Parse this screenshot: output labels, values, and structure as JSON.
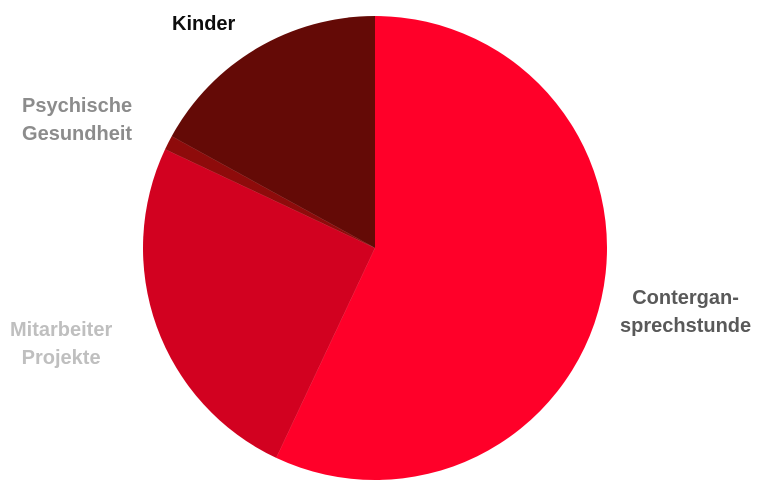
{
  "chart_data": {
    "type": "pie",
    "start_angle_deg": 0,
    "direction": "clockwise",
    "slices": [
      {
        "label_lines": [
          "Contergan-",
          "sprechstunde"
        ],
        "value": 57,
        "color": "#FF0029",
        "label_color": "#595959"
      },
      {
        "label_lines": [
          "Mitarbeiter",
          "Projekte"
        ],
        "value": 25,
        "color": "#D20120",
        "label_color": "#BFBFBF"
      },
      {
        "label_lines": [
          "Psychische",
          "Gesundheit"
        ],
        "value": 1,
        "color": "#8E0B0B",
        "label_color": "#8C8C8C"
      },
      {
        "label_lines": [
          "Kinder"
        ],
        "value": 17,
        "color": "#640A06",
        "label_color": "#0D0D0D"
      }
    ]
  }
}
